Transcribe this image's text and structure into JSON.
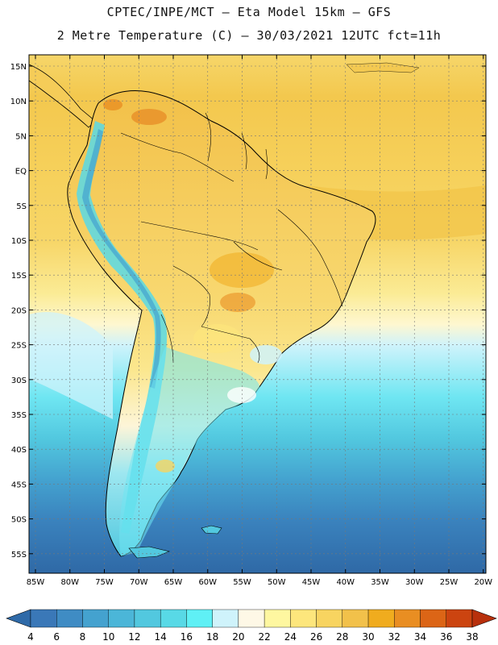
{
  "header": {
    "line1": "CPTEC/INPE/MCT –   Eta Model 15km – GFS",
    "line2": "2 Metre Temperature (C) – 30/03/2021 12UTC fct=11h"
  },
  "map": {
    "region": "South America",
    "lat_labels": [
      "15N",
      "10N",
      "5N",
      "EQ",
      "5S",
      "10S",
      "15S",
      "20S",
      "25S",
      "30S",
      "35S",
      "40S",
      "45S",
      "50S",
      "55S"
    ],
    "lon_labels": [
      "85W",
      "80W",
      "75W",
      "70W",
      "65W",
      "60W",
      "55W",
      "50W",
      "45W",
      "40W",
      "35W",
      "30W",
      "25W",
      "20W"
    ]
  },
  "colorbar": {
    "values": [
      "4",
      "6",
      "8",
      "10",
      "12",
      "14",
      "16",
      "18",
      "20",
      "22",
      "24",
      "26",
      "28",
      "30",
      "32",
      "34",
      "36",
      "38"
    ],
    "colors": [
      "#3a78b8",
      "#3f8cc4",
      "#44a2cf",
      "#4bb6d8",
      "#52c8df",
      "#58d9e6",
      "#5ff0f5",
      "#cff3fb",
      "#fef8e6",
      "#fef7a0",
      "#fde67c",
      "#f8d460",
      "#f2c14a",
      "#f0ac1e",
      "#e98e22",
      "#dc6516",
      "#cc4410"
    ],
    "under_color": "#2f6aa8",
    "over_color": "#b8300c"
  },
  "colors": {
    "ocean_cold": "#2f69a6",
    "ocean_warm": "#f3c84e",
    "land": "#f9d870",
    "andes": "#5bc0d6"
  }
}
